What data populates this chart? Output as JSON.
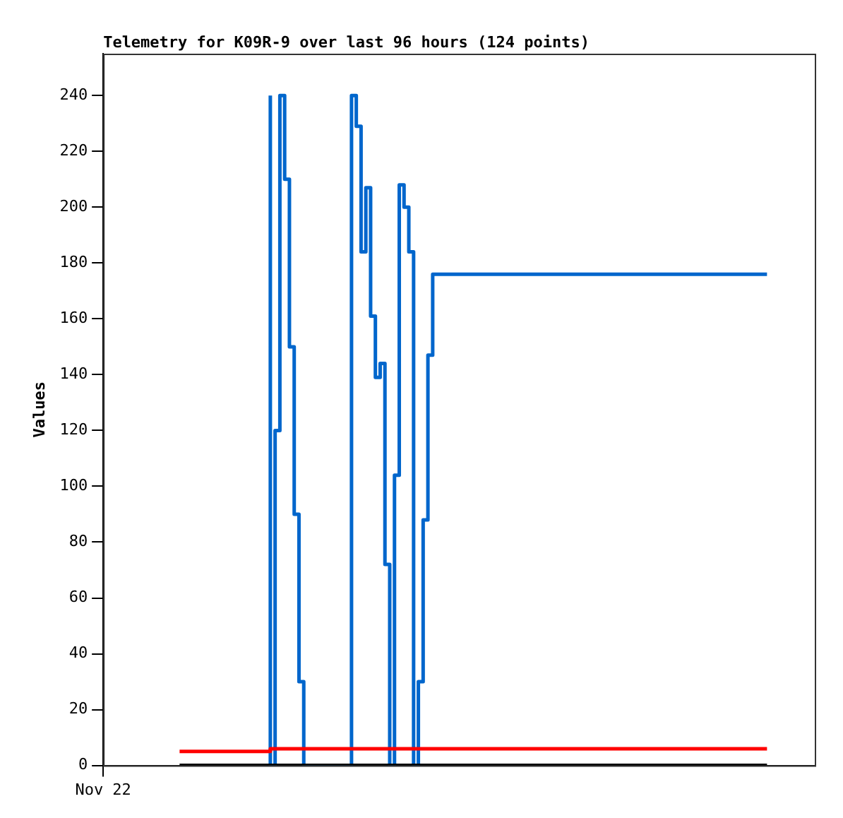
{
  "chart_data": {
    "type": "step",
    "title": "Telemetry for K09R-9 over last 96 hours (124 points)",
    "ylabel": "Values",
    "categories": [
      "Nov 22",
      null,
      null,
      null,
      null,
      null,
      null,
      null,
      null,
      null,
      null,
      null,
      null,
      null,
      null,
      null,
      null,
      null,
      null,
      null,
      null,
      null,
      null,
      null,
      null,
      null,
      null,
      null,
      null,
      null,
      null,
      null,
      null,
      null,
      null,
      null,
      null,
      null,
      null,
      null,
      null,
      null,
      null,
      null,
      null,
      null,
      null,
      null,
      null,
      null,
      null,
      null,
      null,
      null,
      null,
      null,
      null,
      null,
      null,
      null,
      null,
      null,
      null,
      null,
      null,
      null,
      null,
      null,
      null,
      null,
      null,
      null,
      null,
      null,
      null,
      null,
      null,
      null,
      null,
      null,
      null,
      null,
      null,
      null,
      null,
      null,
      null,
      null,
      null,
      null,
      null,
      null,
      null,
      null,
      null,
      null,
      null,
      null,
      null,
      null,
      null,
      null,
      null,
      null,
      null,
      null,
      null,
      null,
      null,
      null,
      null,
      null,
      null,
      null,
      null,
      null,
      null,
      null,
      null,
      null,
      null,
      null,
      null,
      null,
      null,
      null,
      null,
      null,
      null,
      null,
      null,
      null,
      null,
      null,
      null,
      null,
      null,
      null,
      null,
      null,
      null,
      null,
      null,
      null,
      null,
      null,
      null,
      null,
      null,
      null
    ],
    "ylim": [
      0,
      255
    ],
    "yticks": [
      0,
      20,
      40,
      60,
      80,
      100,
      120,
      140,
      160,
      180,
      200,
      220,
      240
    ],
    "grid": false,
    "legend": false,
    "marker": "none",
    "line_style": "solid",
    "series": [
      {
        "color": "#000000",
        "values": [
          null,
          null,
          null,
          null,
          null,
          null,
          null,
          null,
          null,
          null,
          null,
          null,
          null,
          null,
          null,
          null,
          0,
          0,
          0,
          0,
          0,
          0,
          0,
          0,
          0,
          0,
          0,
          0,
          0,
          0,
          0,
          0,
          0,
          0,
          0,
          0,
          0,
          0,
          0,
          0,
          0,
          0,
          0,
          0,
          0,
          0,
          0,
          0,
          0,
          0,
          0,
          0,
          0,
          0,
          0,
          0,
          0,
          0,
          0,
          0,
          0,
          0,
          0,
          0,
          0,
          0,
          0,
          0,
          0,
          0,
          0,
          0,
          0,
          0,
          0,
          0,
          0,
          0,
          0,
          0,
          0,
          0,
          0,
          0,
          0,
          0,
          0,
          0,
          0,
          0,
          0,
          0,
          0,
          0,
          0,
          0,
          0,
          0,
          0,
          0,
          0,
          0,
          0,
          0,
          0,
          0,
          0,
          0,
          0,
          0,
          0,
          0,
          0,
          0,
          0,
          0,
          0,
          0,
          0,
          0,
          0,
          0,
          0,
          0,
          0,
          0,
          0,
          0,
          0,
          0,
          0,
          0,
          0,
          0,
          0,
          0,
          0,
          0,
          0,
          0,
          null,
          null,
          null,
          null,
          null,
          null,
          null,
          null,
          null,
          null
        ]
      },
      {
        "color": "#ff0000",
        "values": [
          null,
          null,
          null,
          null,
          null,
          null,
          null,
          null,
          null,
          null,
          null,
          null,
          null,
          null,
          null,
          null,
          5,
          5,
          5,
          5,
          5,
          5,
          5,
          5,
          5,
          5,
          5,
          5,
          5,
          5,
          5,
          5,
          5,
          5,
          5,
          5,
          6,
          6,
          6,
          6,
          6,
          6,
          6,
          6,
          6,
          6,
          6,
          6,
          6,
          6,
          6,
          6,
          6,
          6,
          6,
          6,
          6,
          6,
          6,
          6,
          6,
          6,
          6,
          6,
          6,
          6,
          6,
          6,
          6,
          6,
          6,
          6,
          6,
          6,
          6,
          6,
          6,
          6,
          6,
          6,
          6,
          6,
          6,
          6,
          6,
          6,
          6,
          6,
          6,
          6,
          6,
          6,
          6,
          6,
          6,
          6,
          6,
          6,
          6,
          6,
          6,
          6,
          6,
          6,
          6,
          6,
          6,
          6,
          6,
          6,
          6,
          6,
          6,
          6,
          6,
          6,
          6,
          6,
          6,
          6,
          6,
          6,
          6,
          6,
          6,
          6,
          6,
          6,
          6,
          6,
          6,
          6,
          6,
          6,
          6,
          6,
          6,
          6,
          6,
          6,
          null,
          null,
          null,
          null,
          null,
          null,
          null,
          null,
          null,
          null
        ]
      },
      {
        "color": "#0066cc",
        "values": [
          null,
          null,
          null,
          null,
          null,
          null,
          null,
          null,
          null,
          null,
          null,
          null,
          null,
          null,
          null,
          null,
          null,
          null,
          null,
          null,
          null,
          null,
          null,
          null,
          null,
          null,
          null,
          null,
          null,
          null,
          null,
          null,
          null,
          null,
          null,
          240,
          0,
          120,
          240,
          210,
          150,
          90,
          30,
          0,
          0,
          0,
          0,
          0,
          0,
          0,
          0,
          0,
          0,
          240,
          229,
          184,
          207,
          161,
          139,
          144,
          72,
          0,
          104,
          208,
          200,
          184,
          0,
          30,
          88,
          147,
          176,
          176,
          176,
          176,
          176,
          176,
          176,
          176,
          176,
          176,
          176,
          176,
          176,
          176,
          176,
          176,
          176,
          176,
          176,
          176,
          176,
          176,
          176,
          176,
          176,
          176,
          176,
          176,
          176,
          176,
          176,
          176,
          176,
          176,
          176,
          176,
          176,
          176,
          176,
          176,
          176,
          176,
          176,
          176,
          176,
          176,
          176,
          176,
          176,
          176,
          176,
          176,
          176,
          176,
          176,
          176,
          176,
          176,
          176,
          176,
          176,
          176,
          176,
          176,
          176,
          176,
          176,
          176,
          176,
          176,
          null,
          null,
          null,
          null,
          null,
          null,
          null,
          null,
          null,
          null
        ]
      }
    ]
  }
}
